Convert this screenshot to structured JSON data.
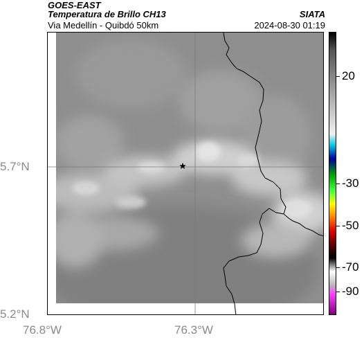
{
  "header": {
    "satellite": "GOES-EAST",
    "product": "Temperatura de Brillo CH13",
    "location": "Via Medellín - Quibdó 50km",
    "agency": "SIATA",
    "datetime": "2024-08-30 01:19"
  },
  "map": {
    "lat_labels": [
      "5.7°N",
      "5.2°N"
    ],
    "lon_labels": [
      "76.8°W",
      "76.3°W"
    ],
    "marker": "star-icon"
  },
  "colorbar": {
    "ticks": [
      "20",
      "-30",
      "-50",
      "-70",
      "-90"
    ],
    "range": [
      30,
      -95
    ],
    "stops": [
      {
        "v": 30,
        "c": "#000000"
      },
      {
        "v": 22,
        "c": "#555555"
      },
      {
        "v": 10,
        "c": "#888888"
      },
      {
        "v": -15,
        "c": "#f0f0f0"
      },
      {
        "v": -20,
        "c": "#00c8e0"
      },
      {
        "v": -26,
        "c": "#0000a0"
      },
      {
        "v": -33,
        "c": "#00a000"
      },
      {
        "v": -40,
        "c": "#40ff40"
      },
      {
        "v": -46,
        "c": "#ffff00"
      },
      {
        "v": -52,
        "c": "#ff8000"
      },
      {
        "v": -58,
        "c": "#e00000"
      },
      {
        "v": -64,
        "c": "#600000"
      },
      {
        "v": -70,
        "c": "#000000"
      },
      {
        "v": -76,
        "c": "#ffffff"
      },
      {
        "v": -82,
        "c": "#b8b8b8"
      },
      {
        "v": -86,
        "c": "#ff40ff"
      },
      {
        "v": -95,
        "c": "#800080"
      }
    ]
  }
}
